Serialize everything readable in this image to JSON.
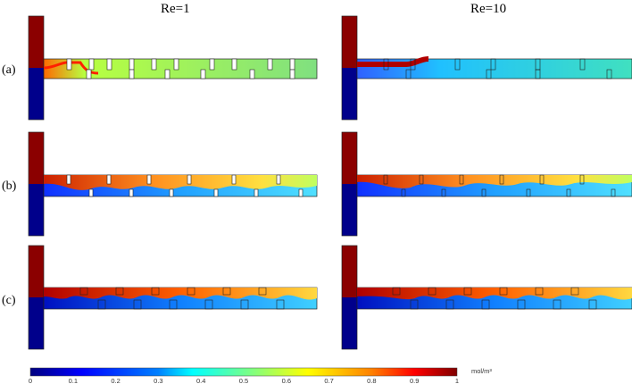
{
  "columns": [
    "Re=1",
    "Re=10"
  ],
  "rows": [
    {
      "label": "(a)",
      "obstacles": "both-walls-rectangular"
    },
    {
      "label": "(b)",
      "obstacles": "both-walls-thin"
    },
    {
      "label": "(c)",
      "obstacles": "both-walls-stepped"
    }
  ],
  "colorbar": {
    "ticks": [
      "0",
      "0.1",
      "0.2",
      "0.3",
      "0.4",
      "0.5",
      "0.6",
      "0.7",
      "0.8",
      "0.9",
      "1"
    ],
    "unit": "mol/m³",
    "colormap": [
      "#00007f",
      "#0000ff",
      "#007fff",
      "#00ffff",
      "#7fff7f",
      "#ffff00",
      "#ff7f00",
      "#ff0000",
      "#7f0000"
    ]
  },
  "colors": {
    "high": "#8b0000",
    "low": "#00008b",
    "mixed_re1_a": "#7fe08a",
    "mixed_re10_a": "#40e0d0"
  }
}
